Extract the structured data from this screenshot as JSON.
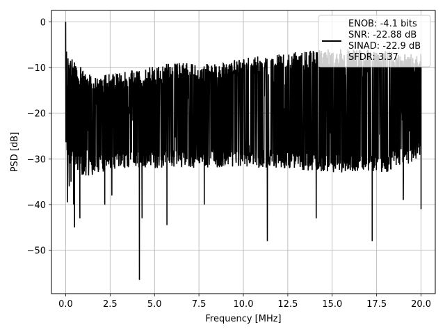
{
  "chart_data": {
    "type": "line",
    "xlabel": "Frequency [MHz]",
    "ylabel": "PSD [dB]",
    "xlim": [
      -0.8,
      20.8
    ],
    "ylim": [
      -59.5,
      2.5
    ],
    "xticks": [
      0.0,
      2.5,
      5.0,
      7.5,
      10.0,
      12.5,
      15.0,
      17.5,
      20.0
    ],
    "xtick_labels": [
      "0.0",
      "2.5",
      "5.0",
      "7.5",
      "10.0",
      "12.5",
      "15.0",
      "17.5",
      "20.0"
    ],
    "yticks": [
      0,
      -10,
      -20,
      -30,
      -40,
      -50
    ],
    "ytick_labels": [
      "0",
      "−10",
      "−20",
      "−30",
      "−40",
      "−50"
    ],
    "grid": true,
    "legend": {
      "placement": "top-right",
      "lines": [
        "ENOB: -4.1 bits",
        "SNR: -22.88 dB",
        "SINAD: -22.9 dB",
        "SFDR: 3.37"
      ]
    },
    "series": [
      {
        "color": "#000000",
        "generated": {
          "count": 1600,
          "x_start": 0.0,
          "x_end": 20.0,
          "seed": 7,
          "band_top": [
            [
              0,
              -7
            ],
            [
              1.5,
              -12
            ],
            [
              3,
              -11
            ],
            [
              6,
              -9
            ],
            [
              8,
              -9
            ],
            [
              10,
              -8
            ],
            [
              12,
              -7
            ],
            [
              14.5,
              -6
            ],
            [
              17,
              -6
            ],
            [
              20,
              -7
            ]
          ],
          "band_bottom": [
            [
              0,
              -30
            ],
            [
              1,
              -34
            ],
            [
              3,
              -32
            ],
            [
              6,
              -32
            ],
            [
              9,
              -32
            ],
            [
              12,
              -32
            ],
            [
              15,
              -33
            ],
            [
              18,
              -33
            ],
            [
              20,
              -30
            ]
          ]
        },
        "points": [
          [
            0.0,
            0.0
          ],
          [
            0.03,
            -23.0
          ],
          [
            0.05,
            -6.5
          ],
          [
            0.08,
            -14.0
          ],
          [
            0.1,
            -39.5
          ],
          [
            0.13,
            -8.0
          ],
          [
            0.2,
            -36.0
          ],
          [
            0.25,
            -31.0
          ],
          [
            0.3,
            -35.0
          ],
          [
            0.45,
            -40.0
          ],
          [
            0.5,
            -45.0
          ],
          [
            0.8,
            -43.0
          ],
          [
            2.2,
            -40.0
          ],
          [
            2.6,
            -38.0
          ],
          [
            4.15,
            -56.5
          ],
          [
            4.3,
            -43.0
          ],
          [
            5.7,
            -44.5
          ],
          [
            7.8,
            -40.0
          ],
          [
            11.35,
            -48.0
          ],
          [
            14.1,
            -43.0
          ],
          [
            17.25,
            -48.0
          ],
          [
            19.0,
            -39.0
          ],
          [
            20.0,
            -41.0
          ]
        ]
      }
    ]
  }
}
